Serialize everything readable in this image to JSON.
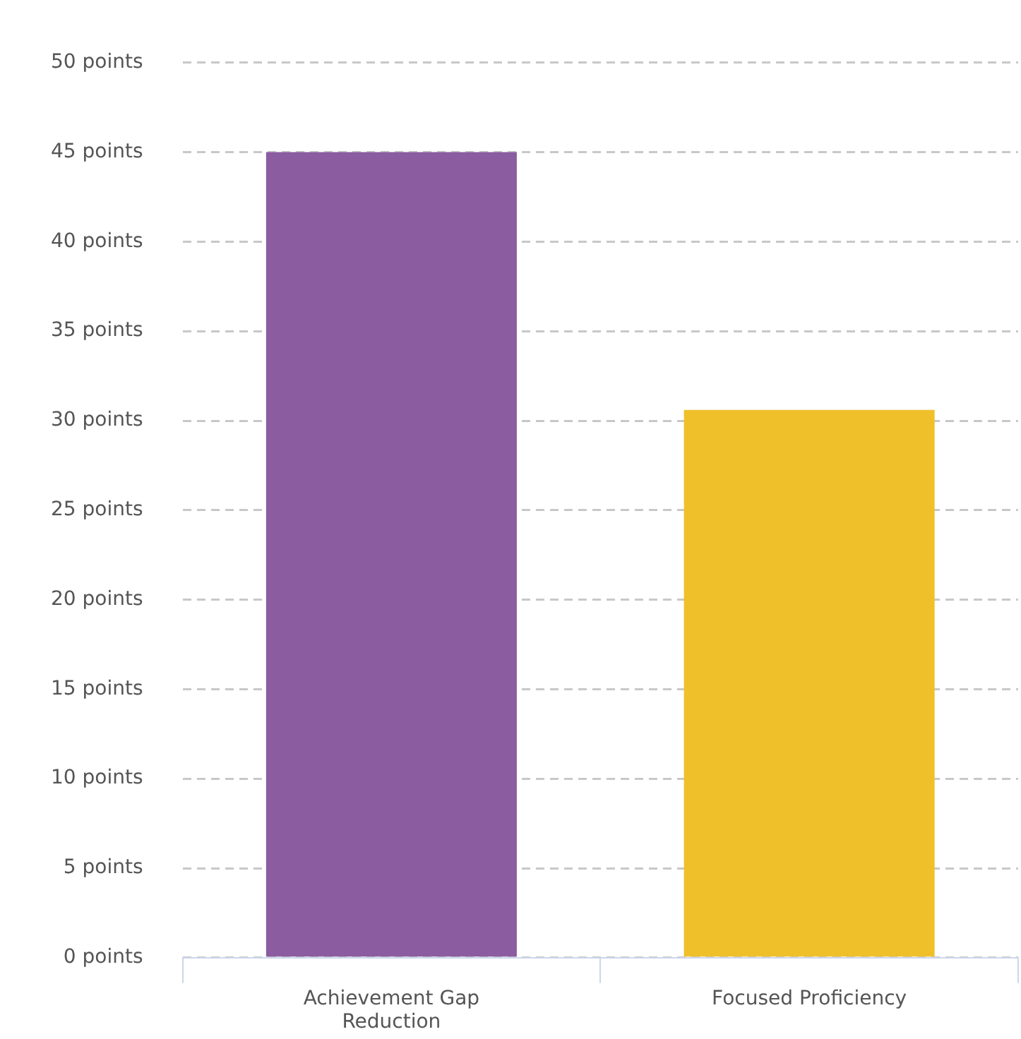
{
  "chart_data": {
    "type": "bar",
    "categories": [
      "Achievement Gap Reduction",
      "Focused Proficiency"
    ],
    "values": [
      45,
      30.6
    ],
    "colors": [
      "#8b5ca0",
      "#f0c02a"
    ],
    "ylim": [
      0,
      50
    ],
    "yticks": [
      {
        "value": 0,
        "label": "0 points"
      },
      {
        "value": 5,
        "label": "5 points"
      },
      {
        "value": 10,
        "label": "10 points"
      },
      {
        "value": 15,
        "label": "15 points"
      },
      {
        "value": 20,
        "label": "20 points"
      },
      {
        "value": 25,
        "label": "25 points"
      },
      {
        "value": 30,
        "label": "30 points"
      },
      {
        "value": 35,
        "label": "35 points"
      },
      {
        "value": 40,
        "label": "40 points"
      },
      {
        "value": 45,
        "label": "45 points"
      },
      {
        "value": 50,
        "label": "50 points"
      }
    ],
    "grid": "y",
    "legend": false
  }
}
